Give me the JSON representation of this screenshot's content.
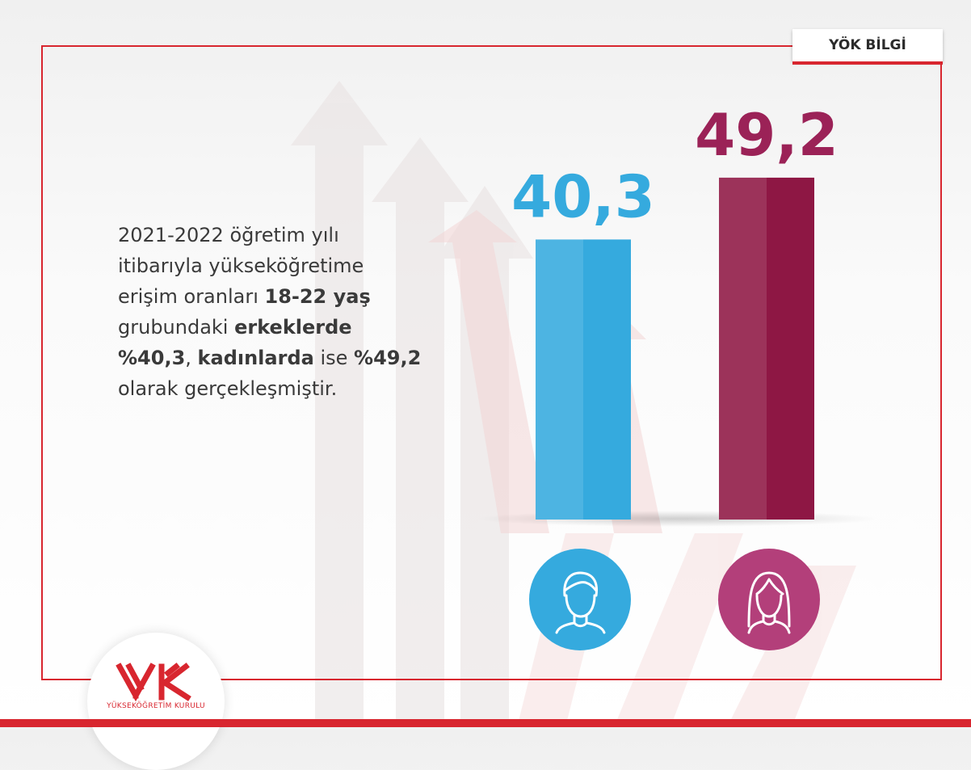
{
  "header": {
    "tag_label": "YÖK BİLGİ"
  },
  "description": {
    "parts": [
      {
        "text": "2021-2022 öğretim yılı itibarıyla yükseköğretime erişim oranları ",
        "bold": false
      },
      {
        "text": "18-22 yaş",
        "bold": true
      },
      {
        "text": " grubundaki ",
        "bold": false
      },
      {
        "text": "erkeklerde",
        "bold": true
      },
      {
        "text": " ",
        "bold": false
      },
      {
        "text": "%40,3",
        "bold": true
      },
      {
        "text": ", ",
        "bold": false
      },
      {
        "text": "kadınlarda",
        "bold": true
      },
      {
        "text": " ise ",
        "bold": false
      },
      {
        "text": "%49,2",
        "bold": true
      },
      {
        "text": " olarak gerçekleşmiştir.",
        "bold": false
      }
    ]
  },
  "chart_data": {
    "type": "bar",
    "categories": [
      "erkek",
      "kadın"
    ],
    "values": [
      40.3,
      49.2
    ],
    "value_labels": [
      "40,3",
      "49,2"
    ],
    "colors": [
      "#35aade",
      "#8e1744"
    ],
    "label_colors": [
      "#35aade",
      "#9b2257"
    ],
    "icons": [
      "male-person-icon",
      "female-person-icon"
    ],
    "icon_circle_colors": [
      "#35aade",
      "#b33f7a"
    ],
    "title": "",
    "xlabel": "",
    "ylabel": ""
  },
  "logo": {
    "name": "YÜKSEKÖĞRETİM KURULU"
  }
}
